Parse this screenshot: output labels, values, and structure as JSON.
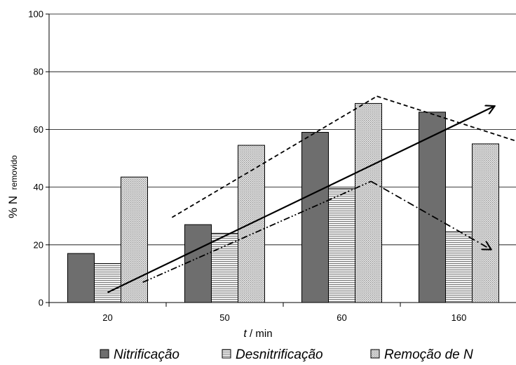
{
  "chart_data": {
    "type": "bar",
    "categories": [
      "20",
      "50",
      "60",
      "160"
    ],
    "series": [
      {
        "name": "Nitrificação",
        "values": [
          17,
          27,
          59,
          66
        ],
        "color": "#6e6e6e",
        "pattern": "solid-dark"
      },
      {
        "name": "Desnitrificação",
        "values": [
          13.5,
          24,
          39.5,
          24.5
        ],
        "color": "#d8d8d8",
        "pattern": "horizontal-lines"
      },
      {
        "name": "Remoção de N",
        "values": [
          43.5,
          54.5,
          69,
          55
        ],
        "color": "#cfcfcf",
        "pattern": "dotted"
      }
    ],
    "ylim": [
      0,
      100
    ],
    "yticks": [
      "0",
      "20",
      "40",
      "60",
      "80",
      "100"
    ],
    "xlabel": {
      "var": "t",
      "rest": " / min"
    },
    "ylabel": {
      "main": "% N",
      "sub": "removido"
    },
    "grid": "horizontal",
    "legend": "bottom",
    "trend_lines": [
      {
        "style": "solid",
        "arrow": true,
        "points": [
          [
            0.0,
            3.5
          ],
          [
            3.3,
            68
          ]
        ]
      },
      {
        "style": "dashed",
        "arrow": false,
        "points": [
          [
            0.55,
            29.5
          ],
          [
            2.3,
            71.5
          ]
        ]
      },
      {
        "style": "dashed",
        "arrow": true,
        "points": [
          [
            2.3,
            71.5
          ],
          [
            3.87,
            51
          ]
        ]
      },
      {
        "style": "dash-dot-dot",
        "arrow": false,
        "points": [
          [
            0.3,
            7
          ],
          [
            2.25,
            42
          ]
        ]
      },
      {
        "style": "dash-dot",
        "arrow": true,
        "points": [
          [
            2.25,
            42
          ],
          [
            3.27,
            18.5
          ]
        ]
      }
    ]
  }
}
